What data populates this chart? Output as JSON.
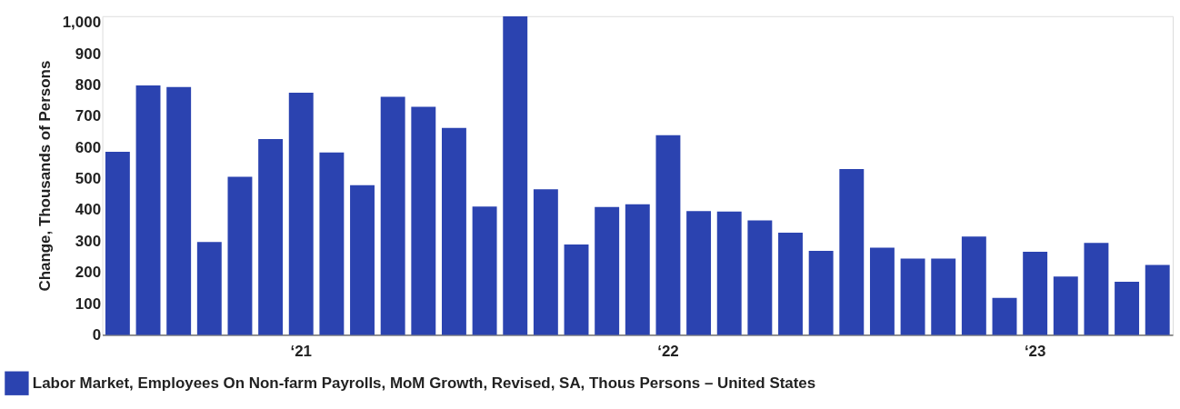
{
  "chart_data": {
    "type": "bar",
    "ylabel": "Change, Thousands of Persons",
    "categories": [
      null,
      null,
      null,
      null,
      null,
      null,
      "‘21",
      null,
      null,
      null,
      null,
      null,
      null,
      null,
      null,
      null,
      null,
      null,
      "‘22",
      null,
      null,
      null,
      null,
      null,
      null,
      null,
      null,
      null,
      null,
      null,
      "‘23",
      null,
      null,
      null,
      null
    ],
    "series": [
      {
        "name": "Labor Market, Employees On Non-farm Payrolls, MoM Growth, Revised, SA, Thous Persons – United States",
        "color": "#2b43b0",
        "values": [
          586,
          798,
          793,
          297,
          506,
          627,
          775,
          584,
          479,
          762,
          730,
          662,
          411,
          1019,
          466,
          289,
          409,
          418,
          639,
          396,
          395,
          366,
          327,
          269,
          531,
          279,
          244,
          244,
          315,
          118,
          266,
          187,
          294,
          170,
          224
        ]
      }
    ],
    "ylim": [
      0,
      1020
    ],
    "yticks": [
      0,
      100,
      200,
      300,
      400,
      500,
      600,
      700,
      800,
      900,
      {
        "value": 1000,
        "label": "1,000"
      }
    ],
    "grid": false,
    "legend": "bottom left"
  }
}
